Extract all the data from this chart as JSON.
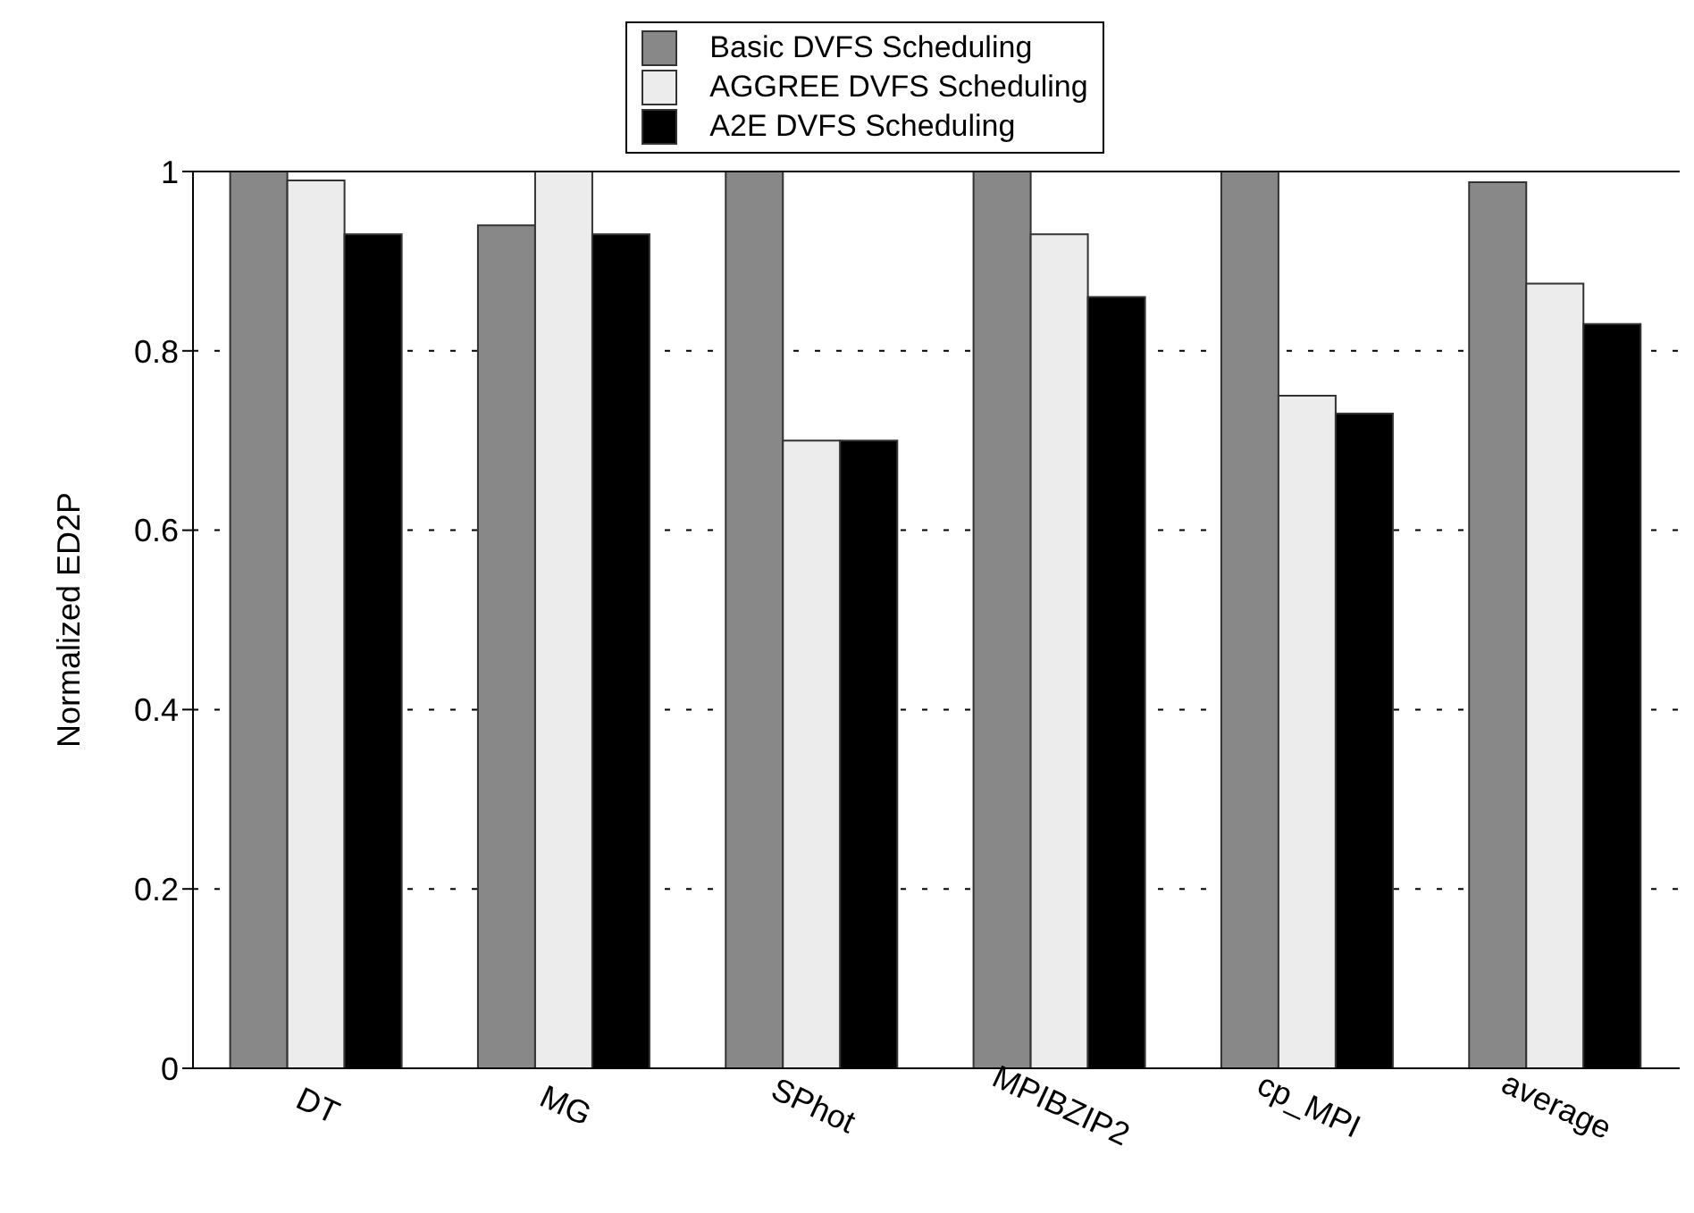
{
  "chart_data": {
    "type": "bar",
    "ylabel": "Normalized ED2P",
    "categories": [
      "DT",
      "MG",
      "SPhot",
      "MPIBZIP2",
      "cp_MPI",
      "average"
    ],
    "series": [
      {
        "name": "Basic DVFS Scheduling",
        "color": "#888888",
        "values": [
          1.0,
          0.94,
          1.0,
          1.0,
          1.0,
          0.988
        ]
      },
      {
        "name": "AGGREE DVFS Scheduling",
        "color": "#ececec",
        "values": [
          0.99,
          1.0,
          0.7,
          0.93,
          0.75,
          0.875
        ]
      },
      {
        "name": "A2E DVFS Scheduling",
        "color": "#000000",
        "values": [
          0.93,
          0.93,
          0.7,
          0.86,
          0.73,
          0.83
        ]
      }
    ],
    "ylim": [
      0,
      1
    ],
    "yticks": [
      0,
      0.2,
      0.4,
      0.6,
      0.8,
      1
    ],
    "grid": "y",
    "legend": "top"
  }
}
